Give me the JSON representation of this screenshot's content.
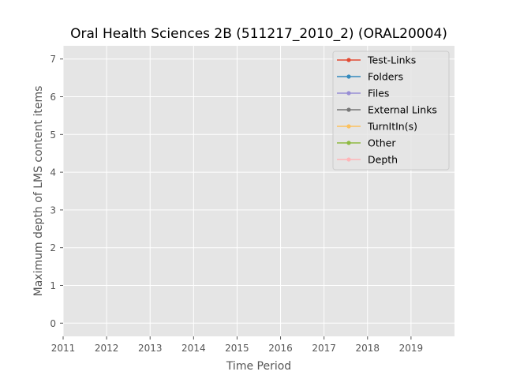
{
  "chart_data": {
    "type": "line",
    "title": "Oral Health Sciences 2B (511217_2010_2) (ORAL20004)",
    "xlabel": "Time Period",
    "ylabel": "Maximum depth of LMS content items",
    "xlim": [
      2011,
      2020
    ],
    "ylim": [
      -0.35,
      7.35
    ],
    "x_ticks": [
      "2011",
      "2012",
      "2013",
      "2014",
      "2015",
      "2016",
      "2017",
      "2018",
      "2019"
    ],
    "y_ticks": [
      "0",
      "1",
      "2",
      "3",
      "4",
      "5",
      "6",
      "7"
    ],
    "grid": true,
    "legend_position": "top-right",
    "series": [
      {
        "name": "Test-Links",
        "color": "#E24A33",
        "x": [],
        "y": []
      },
      {
        "name": "Folders",
        "color": "#348ABD",
        "x": [],
        "y": []
      },
      {
        "name": "Files",
        "color": "#988ED5",
        "x": [],
        "y": []
      },
      {
        "name": "External Links",
        "color": "#777777",
        "x": [],
        "y": []
      },
      {
        "name": "TurnItIn(s)",
        "color": "#FBC15E",
        "x": [],
        "y": []
      },
      {
        "name": "Other",
        "color": "#8EBA42",
        "x": [],
        "y": []
      },
      {
        "name": "Depth",
        "color": "#FFB5B8",
        "x": [],
        "y": []
      }
    ]
  }
}
